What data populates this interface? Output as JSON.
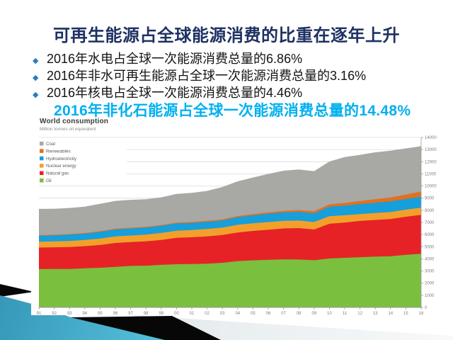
{
  "slide": {
    "title": "可再生能源占全球能源消费的比重在逐年上升",
    "bullet_marker": "◆",
    "bullets": [
      "2016年水电占全球一次能源消费总量的6.86%",
      "2016年非水可再生能源占全球一次能源消费总量的3.16%",
      "2016年核电占全球一次能源消费总量的4.46%"
    ],
    "highlight": "2016年非化石能源占全球一次能源消费总量的14.48%",
    "colors": {
      "title": "#1e3163",
      "bullet_marker": "#2d7dbf",
      "highlight": "#00b0f0",
      "footer_teal": "#3ba7c8",
      "footer_black": "#070707",
      "footer_gray": "#dde3e7"
    }
  },
  "chart_data": {
    "type": "area",
    "stacked": true,
    "title": "World consumption",
    "subtitle": "Million tonnes oil equivalent",
    "unit": "Mtoe",
    "grid": true,
    "legend_position": "top-left",
    "ylim": [
      0,
      14000
    ],
    "y_tick_step": 1000,
    "years": [
      1991,
      1992,
      1993,
      1994,
      1995,
      1996,
      1997,
      1998,
      1999,
      2000,
      2001,
      2002,
      2003,
      2004,
      2005,
      2006,
      2007,
      2008,
      2009,
      2010,
      2011,
      2012,
      2013,
      2014,
      2015,
      2016
    ],
    "x_tick_labels": [
      "91",
      "92",
      "93",
      "94",
      "95",
      "96",
      "97",
      "98",
      "99",
      "00",
      "01",
      "02",
      "03",
      "04",
      "05",
      "06",
      "07",
      "08",
      "09",
      "10",
      "11",
      "12",
      "13",
      "14",
      "15",
      "16"
    ],
    "stack_order_bottom_to_top": [
      "Oil",
      "Natural gas",
      "Nuclear energy",
      "Hydroelectricity",
      "Renewables",
      "Coal"
    ],
    "series": [
      {
        "name": "Coal",
        "color": "#a8a8a4",
        "values": [
          2160,
          2143,
          2156,
          2173,
          2256,
          2293,
          2301,
          2268,
          2278,
          2355,
          2400,
          2462,
          2668,
          2858,
          3012,
          3164,
          3305,
          3342,
          3305,
          3532,
          3774,
          3797,
          3867,
          3862,
          3800,
          3732
        ]
      },
      {
        "name": "Renewables",
        "color": "#e4701e",
        "values": [
          42,
          44,
          46,
          49,
          52,
          55,
          58,
          62,
          66,
          70,
          74,
          80,
          86,
          94,
          104,
          116,
          131,
          148,
          167,
          192,
          221,
          250,
          282,
          317,
          365,
          420
        ]
      },
      {
        "name": "Hydroelectricity",
        "color": "#169fda",
        "values": [
          500,
          500,
          519,
          527,
          561,
          573,
          581,
          584,
          590,
          600,
          586,
          592,
          596,
          634,
          658,
          684,
          696,
          717,
          723,
          779,
          794,
          831,
          859,
          879,
          881,
          910
        ]
      },
      {
        "name": "Nuclear energy",
        "color": "#f3a02b",
        "values": [
          482,
          484,
          497,
          506,
          526,
          544,
          541,
          551,
          571,
          584,
          601,
          611,
          599,
          625,
          627,
          635,
          622,
          619,
          614,
          626,
          600,
          560,
          564,
          574,
          583,
          592
        ]
      },
      {
        "name": "Natural gas",
        "color": "#e62226",
        "values": [
          1772,
          1782,
          1814,
          1822,
          1869,
          1964,
          1963,
          2003,
          2055,
          2176,
          2197,
          2246,
          2292,
          2357,
          2423,
          2476,
          2546,
          2591,
          2532,
          2858,
          2905,
          2987,
          3020,
          3066,
          3135,
          3204
        ]
      },
      {
        "name": "Oil",
        "color": "#7abf3e",
        "values": [
          3156,
          3173,
          3160,
          3226,
          3269,
          3343,
          3418,
          3438,
          3504,
          3558,
          3577,
          3606,
          3677,
          3817,
          3877,
          3919,
          3960,
          3942,
          3885,
          4032,
          4085,
          4138,
          4185,
          4211,
          4331,
          4418
        ]
      }
    ]
  }
}
